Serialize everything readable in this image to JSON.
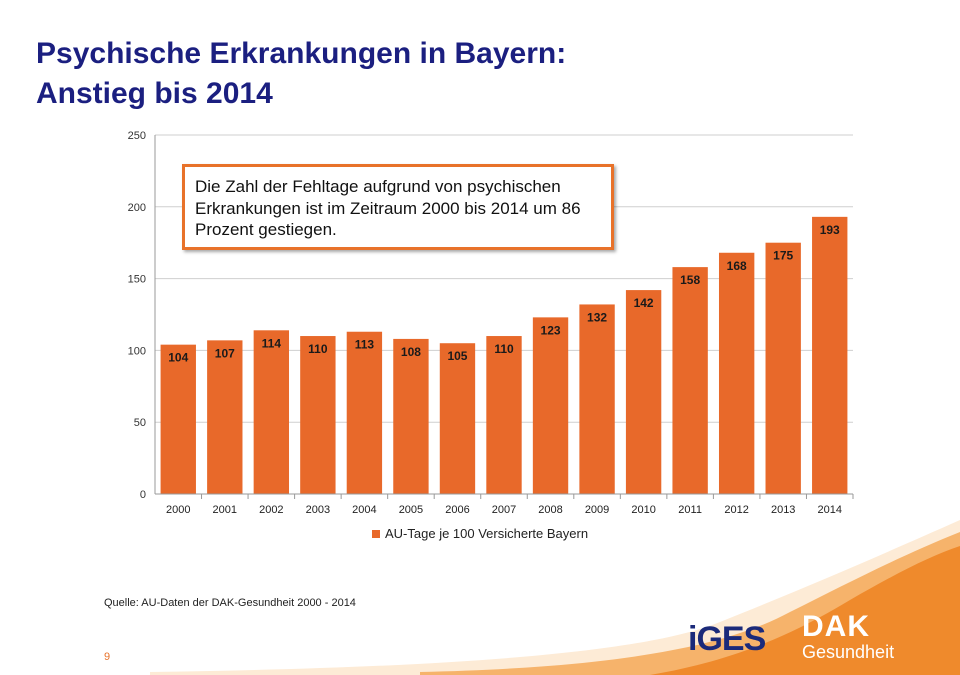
{
  "slide": {
    "title_line1": "Psychische Erkrankungen in Bayern:",
    "title_line2": "Anstieg bis 2014",
    "callout_text": "Die Zahl der Fehltage aufgrund von psychischen Erkrankungen ist im Zeitraum 2000 bis 2014 um 86 Prozent gestiegen.",
    "source": "Quelle: AU-Daten der DAK-Gesundheit  2000 - 2014",
    "page_number": "9",
    "logo_iges": "iGES",
    "logo_dak_top": "DAK",
    "logo_dak_bottom": "Gesundheit"
  },
  "colors": {
    "title": "#1b1f80",
    "bar": "#e8692a",
    "callout_border": "#e8722a",
    "accent": "#f08a2c"
  },
  "chart_data": {
    "type": "bar",
    "categories": [
      "2000",
      "2001",
      "2002",
      "2003",
      "2004",
      "2005",
      "2006",
      "2007",
      "2008",
      "2009",
      "2010",
      "2011",
      "2012",
      "2013",
      "2014"
    ],
    "series": [
      {
        "name": "AU-Tage je 100 Versicherte Bayern",
        "values": [
          104,
          107,
          114,
          110,
          113,
          108,
          105,
          110,
          123,
          132,
          142,
          158,
          168,
          175,
          193
        ]
      }
    ],
    "yticks": [
      0,
      50,
      100,
      150,
      200,
      250
    ],
    "ylim": [
      0,
      250
    ],
    "grid": true,
    "legend_position": "bottom",
    "data_labels": true
  }
}
